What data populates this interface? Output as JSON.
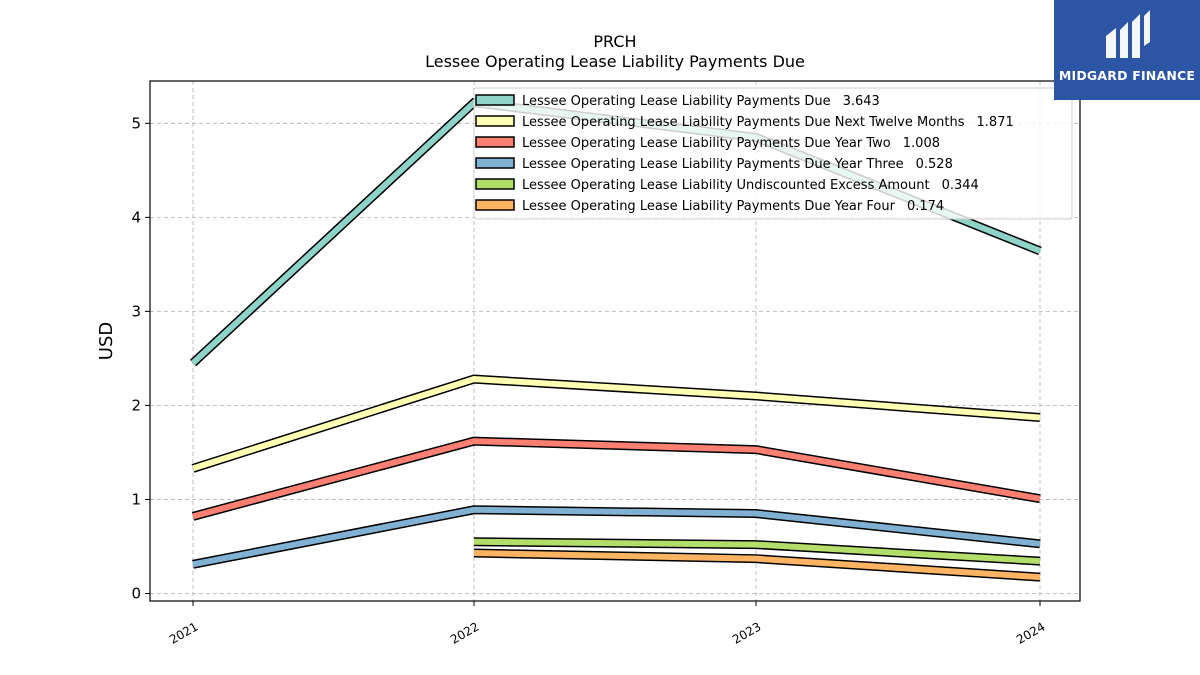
{
  "brand": {
    "name": "MIDGARD FINANCE",
    "background": "#2c55a6"
  },
  "chart_data": {
    "type": "line",
    "title": "PRCH",
    "subtitle": "Lessee Operating Lease Liability Payments Due",
    "xlabel": "",
    "ylabel": "USD",
    "categories": [
      "2021",
      "2022",
      "2023",
      "2024"
    ],
    "ylim": [
      -0.08,
      5.45
    ],
    "yticks": [
      0,
      1,
      2,
      3,
      4,
      5
    ],
    "grid": true,
    "legend_position": "top-right",
    "series": [
      {
        "name": "Lessee Operating Lease Liability Payments Due",
        "legend_value": "3.643",
        "color": "#8dd3c7",
        "values": [
          2.45,
          5.22,
          4.85,
          3.643
        ]
      },
      {
        "name": "Lessee Operating Lease Liability Payments Due Next Twelve Months",
        "legend_value": "1.871",
        "color": "#ffffb3",
        "values": [
          1.33,
          2.28,
          2.1,
          1.871
        ]
      },
      {
        "name": "Lessee Operating Lease Liability Payments Due Year Two",
        "legend_value": "1.008",
        "color": "#fb8072",
        "values": [
          0.82,
          1.62,
          1.53,
          1.008
        ]
      },
      {
        "name": "Lessee Operating Lease Liability Payments Due Year Three",
        "legend_value": "0.528",
        "color": "#80b1d3",
        "values": [
          0.31,
          0.89,
          0.85,
          0.528
        ]
      },
      {
        "name": "Lessee Operating Lease Liability Undiscounted Excess Amount",
        "legend_value": "0.344",
        "color": "#b3de69",
        "values": [
          null,
          0.55,
          0.52,
          0.344
        ]
      },
      {
        "name": "Lessee Operating Lease Liability Payments Due Year Four",
        "legend_value": "0.174",
        "color": "#fdb462",
        "values": [
          null,
          0.43,
          0.37,
          0.174
        ]
      }
    ]
  }
}
